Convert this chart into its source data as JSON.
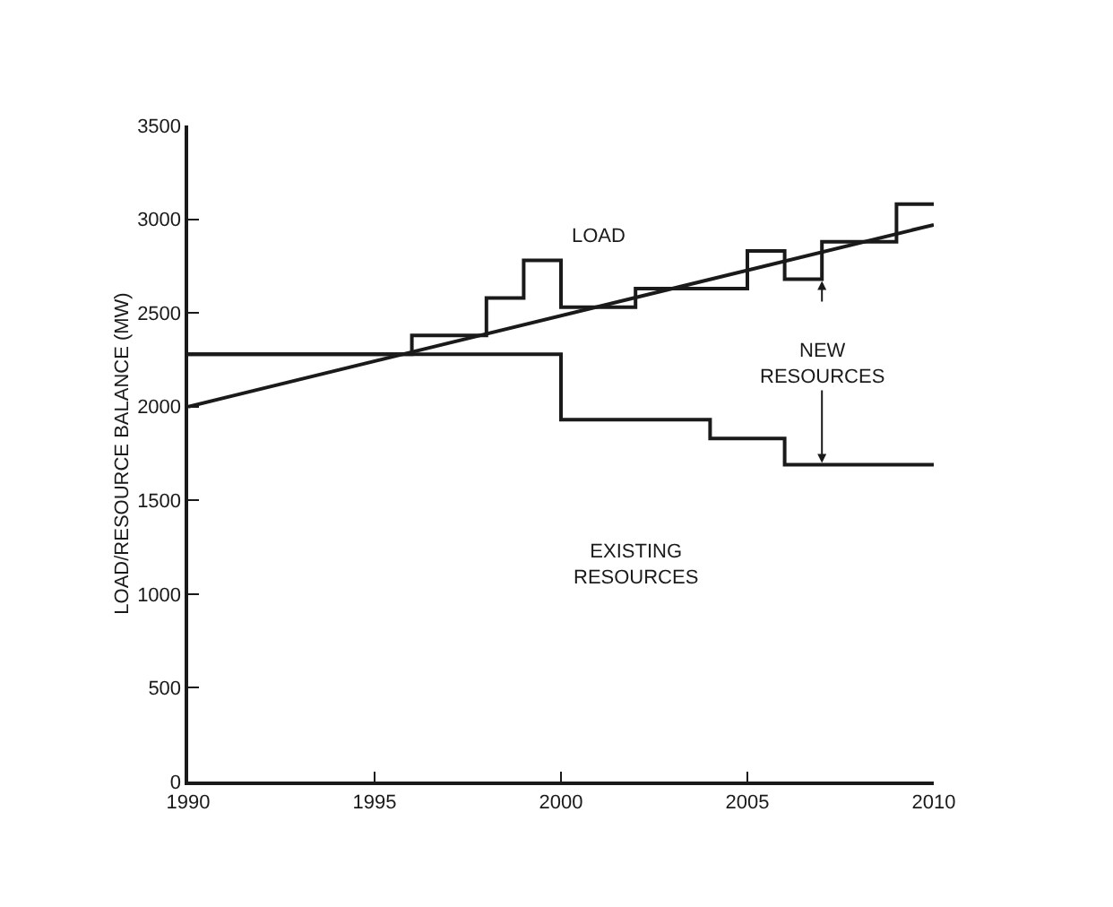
{
  "chart_data": {
    "type": "step",
    "ylabel": "LOAD/RESOURCE BALANCE (MW)",
    "xlim": [
      1990,
      2010
    ],
    "xticks": [
      1990,
      1995,
      2000,
      2005,
      2010
    ],
    "ylim": [
      0,
      3500
    ],
    "yticks": [
      0,
      500,
      1000,
      1500,
      2000,
      2500,
      3000,
      3500
    ],
    "series": [
      {
        "color": "#1a1a1a",
        "x": [
          1990,
          1996,
          1998,
          1999,
          2000,
          2002,
          2005,
          2006,
          2007,
          2009,
          2010
        ],
        "values": [
          2280,
          2380,
          2580,
          2780,
          2530,
          2630,
          2830,
          2680,
          2880,
          3080,
          3080
        ]
      },
      {
        "color": "#1a1a1a",
        "x": [
          1990,
          2000,
          2004,
          2006,
          2010
        ],
        "values": [
          2280,
          1930,
          1830,
          1690,
          1690
        ]
      },
      {
        "type": "line",
        "color": "#1a1a1a",
        "x": [
          1990,
          2010
        ],
        "values": [
          2000,
          2970
        ]
      }
    ],
    "annotations": [
      "LOAD",
      {
        "text": "NEW RESOURCES",
        "x": 2007,
        "y": 1690
      },
      "EXISTING RESOURCES"
    ],
    "marker": "none"
  }
}
